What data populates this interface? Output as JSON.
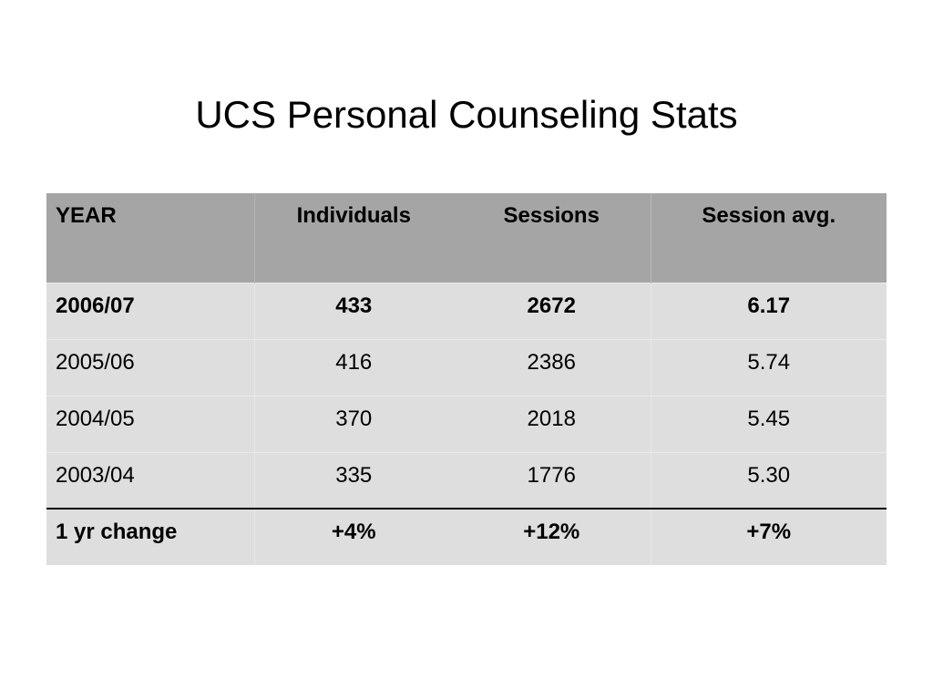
{
  "title": "UCS Personal Counseling Stats",
  "table": {
    "headers": [
      "YEAR",
      "Individuals",
      "Sessions",
      "Session avg."
    ],
    "rows": [
      [
        "2006/07",
        "433",
        "2672",
        "6.17"
      ],
      [
        "2005/06",
        "416",
        "2386",
        "5.74"
      ],
      [
        "2004/05",
        "370",
        "2018",
        "5.45"
      ],
      [
        "2003/04",
        "335",
        "1776",
        "5.30"
      ]
    ],
    "change_row": [
      "1 yr change",
      "+4%",
      "+12%",
      "+7%"
    ]
  }
}
